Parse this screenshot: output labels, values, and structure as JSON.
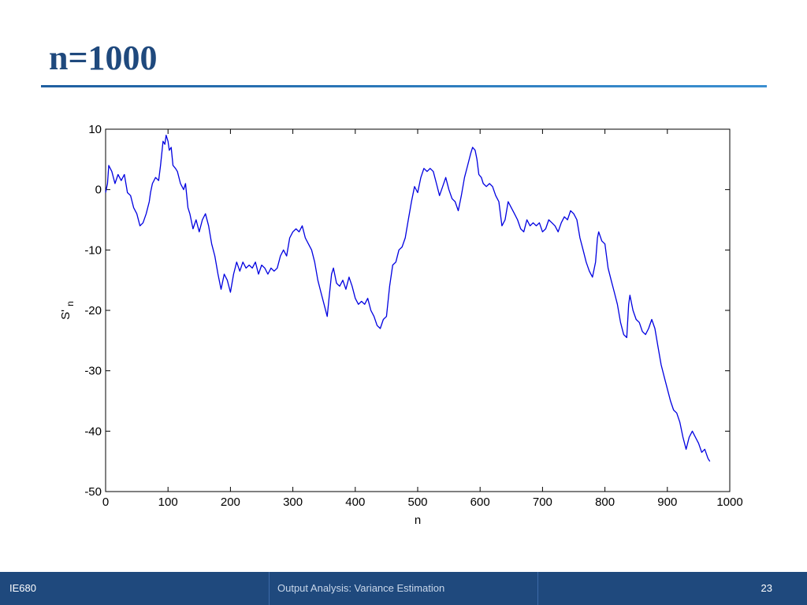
{
  "slide": {
    "title": "n=1000"
  },
  "footer": {
    "left": "IE680",
    "center": "Output Analysis: Variance  Estimation",
    "page": "23"
  },
  "chart_data": {
    "type": "line",
    "title": "",
    "xlabel": "n",
    "ylabel_base": "S'",
    "ylabel_sub": "n",
    "xlim": [
      0,
      1000
    ],
    "ylim": [
      -50,
      10
    ],
    "x_ticks": [
      0,
      100,
      200,
      300,
      400,
      500,
      600,
      700,
      800,
      900,
      1000
    ],
    "y_ticks": [
      10,
      0,
      -10,
      -20,
      -30,
      -40,
      -50
    ],
    "grid": false,
    "series": [
      {
        "color": "#0000e0",
        "points": [
          [
            0,
            -0.5
          ],
          [
            3,
            1
          ],
          [
            5,
            4
          ],
          [
            10,
            3
          ],
          [
            15,
            1
          ],
          [
            20,
            2.5
          ],
          [
            25,
            1.5
          ],
          [
            30,
            2.5
          ],
          [
            35,
            -0.5
          ],
          [
            40,
            -1
          ],
          [
            45,
            -3
          ],
          [
            50,
            -4
          ],
          [
            55,
            -6
          ],
          [
            60,
            -5.5
          ],
          [
            65,
            -4
          ],
          [
            70,
            -2
          ],
          [
            72,
            -0.5
          ],
          [
            75,
            1
          ],
          [
            80,
            2
          ],
          [
            85,
            1.5
          ],
          [
            88,
            4
          ],
          [
            92,
            8
          ],
          [
            95,
            7.5
          ],
          [
            97,
            9
          ],
          [
            100,
            8
          ],
          [
            102,
            6.5
          ],
          [
            105,
            7
          ],
          [
            108,
            4
          ],
          [
            112,
            3.5
          ],
          [
            115,
            3
          ],
          [
            120,
            1
          ],
          [
            125,
            0
          ],
          [
            128,
            1
          ],
          [
            132,
            -3
          ],
          [
            135,
            -4
          ],
          [
            140,
            -6.5
          ],
          [
            145,
            -5
          ],
          [
            150,
            -7
          ],
          [
            155,
            -5
          ],
          [
            160,
            -4
          ],
          [
            165,
            -6
          ],
          [
            170,
            -9
          ],
          [
            175,
            -11
          ],
          [
            180,
            -14
          ],
          [
            185,
            -16.5
          ],
          [
            190,
            -14
          ],
          [
            195,
            -15
          ],
          [
            200,
            -17
          ],
          [
            205,
            -14
          ],
          [
            210,
            -12
          ],
          [
            215,
            -13.5
          ],
          [
            220,
            -12
          ],
          [
            225,
            -13
          ],
          [
            230,
            -12.5
          ],
          [
            235,
            -13
          ],
          [
            240,
            -12
          ],
          [
            245,
            -14
          ],
          [
            250,
            -12.5
          ],
          [
            255,
            -13
          ],
          [
            260,
            -14
          ],
          [
            265,
            -13
          ],
          [
            270,
            -13.5
          ],
          [
            275,
            -13
          ],
          [
            280,
            -11
          ],
          [
            285,
            -10
          ],
          [
            290,
            -11
          ],
          [
            295,
            -8
          ],
          [
            300,
            -7
          ],
          [
            305,
            -6.5
          ],
          [
            310,
            -7
          ],
          [
            315,
            -6
          ],
          [
            320,
            -8
          ],
          [
            325,
            -9
          ],
          [
            330,
            -10
          ],
          [
            335,
            -12
          ],
          [
            340,
            -15
          ],
          [
            345,
            -17
          ],
          [
            350,
            -19
          ],
          [
            355,
            -21
          ],
          [
            358,
            -18
          ],
          [
            362,
            -14
          ],
          [
            365,
            -13
          ],
          [
            370,
            -15.5
          ],
          [
            375,
            -16
          ],
          [
            380,
            -15
          ],
          [
            385,
            -16.5
          ],
          [
            390,
            -14.5
          ],
          [
            395,
            -16
          ],
          [
            400,
            -18
          ],
          [
            405,
            -19
          ],
          [
            410,
            -18.5
          ],
          [
            415,
            -19
          ],
          [
            420,
            -18
          ],
          [
            425,
            -20
          ],
          [
            430,
            -21
          ],
          [
            435,
            -22.5
          ],
          [
            440,
            -23
          ],
          [
            445,
            -21.5
          ],
          [
            450,
            -21
          ],
          [
            455,
            -16
          ],
          [
            460,
            -12.5
          ],
          [
            465,
            -12
          ],
          [
            470,
            -10
          ],
          [
            475,
            -9.5
          ],
          [
            480,
            -8
          ],
          [
            485,
            -5
          ],
          [
            490,
            -2
          ],
          [
            495,
            0.5
          ],
          [
            500,
            -0.5
          ],
          [
            505,
            2
          ],
          [
            510,
            3.5
          ],
          [
            515,
            3
          ],
          [
            520,
            3.5
          ],
          [
            525,
            3
          ],
          [
            530,
            1
          ],
          [
            535,
            -1
          ],
          [
            540,
            0.5
          ],
          [
            545,
            2
          ],
          [
            550,
            0
          ],
          [
            555,
            -1.5
          ],
          [
            560,
            -2
          ],
          [
            565,
            -3.5
          ],
          [
            570,
            -1
          ],
          [
            575,
            2
          ],
          [
            580,
            4
          ],
          [
            585,
            6
          ],
          [
            588,
            7
          ],
          [
            592,
            6.5
          ],
          [
            595,
            5
          ],
          [
            598,
            2.5
          ],
          [
            602,
            2
          ],
          [
            605,
            1
          ],
          [
            610,
            0.5
          ],
          [
            615,
            1
          ],
          [
            620,
            0.5
          ],
          [
            625,
            -1
          ],
          [
            630,
            -2
          ],
          [
            635,
            -6
          ],
          [
            640,
            -5
          ],
          [
            645,
            -2
          ],
          [
            650,
            -3
          ],
          [
            655,
            -4
          ],
          [
            660,
            -5
          ],
          [
            665,
            -6.5
          ],
          [
            670,
            -7
          ],
          [
            675,
            -5
          ],
          [
            680,
            -6
          ],
          [
            685,
            -5.5
          ],
          [
            690,
            -6
          ],
          [
            695,
            -5.5
          ],
          [
            700,
            -7
          ],
          [
            705,
            -6.5
          ],
          [
            710,
            -5
          ],
          [
            715,
            -5.5
          ],
          [
            720,
            -6
          ],
          [
            725,
            -7
          ],
          [
            730,
            -5.5
          ],
          [
            735,
            -4.5
          ],
          [
            740,
            -5
          ],
          [
            745,
            -3.5
          ],
          [
            750,
            -4
          ],
          [
            755,
            -5
          ],
          [
            760,
            -8
          ],
          [
            765,
            -10
          ],
          [
            770,
            -12
          ],
          [
            775,
            -13.5
          ],
          [
            780,
            -14.5
          ],
          [
            785,
            -12
          ],
          [
            788,
            -8
          ],
          [
            790,
            -7
          ],
          [
            795,
            -8.5
          ],
          [
            800,
            -9
          ],
          [
            805,
            -13
          ],
          [
            810,
            -15
          ],
          [
            815,
            -17
          ],
          [
            820,
            -19
          ],
          [
            825,
            -22
          ],
          [
            830,
            -24
          ],
          [
            835,
            -24.5
          ],
          [
            838,
            -19
          ],
          [
            840,
            -17.5
          ],
          [
            845,
            -20
          ],
          [
            850,
            -21.5
          ],
          [
            855,
            -22
          ],
          [
            860,
            -23.5
          ],
          [
            865,
            -24
          ],
          [
            870,
            -23
          ],
          [
            875,
            -21.5
          ],
          [
            880,
            -23
          ],
          [
            885,
            -26
          ],
          [
            890,
            -29
          ],
          [
            895,
            -31
          ],
          [
            900,
            -33
          ],
          [
            905,
            -35
          ],
          [
            910,
            -36.5
          ],
          [
            915,
            -37
          ],
          [
            920,
            -38.5
          ],
          [
            925,
            -41
          ],
          [
            930,
            -43
          ],
          [
            935,
            -41
          ],
          [
            940,
            -40
          ],
          [
            945,
            -41
          ],
          [
            950,
            -42
          ],
          [
            955,
            -43.5
          ],
          [
            960,
            -43
          ],
          [
            965,
            -44.5
          ],
          [
            968,
            -45
          ]
        ]
      }
    ]
  }
}
